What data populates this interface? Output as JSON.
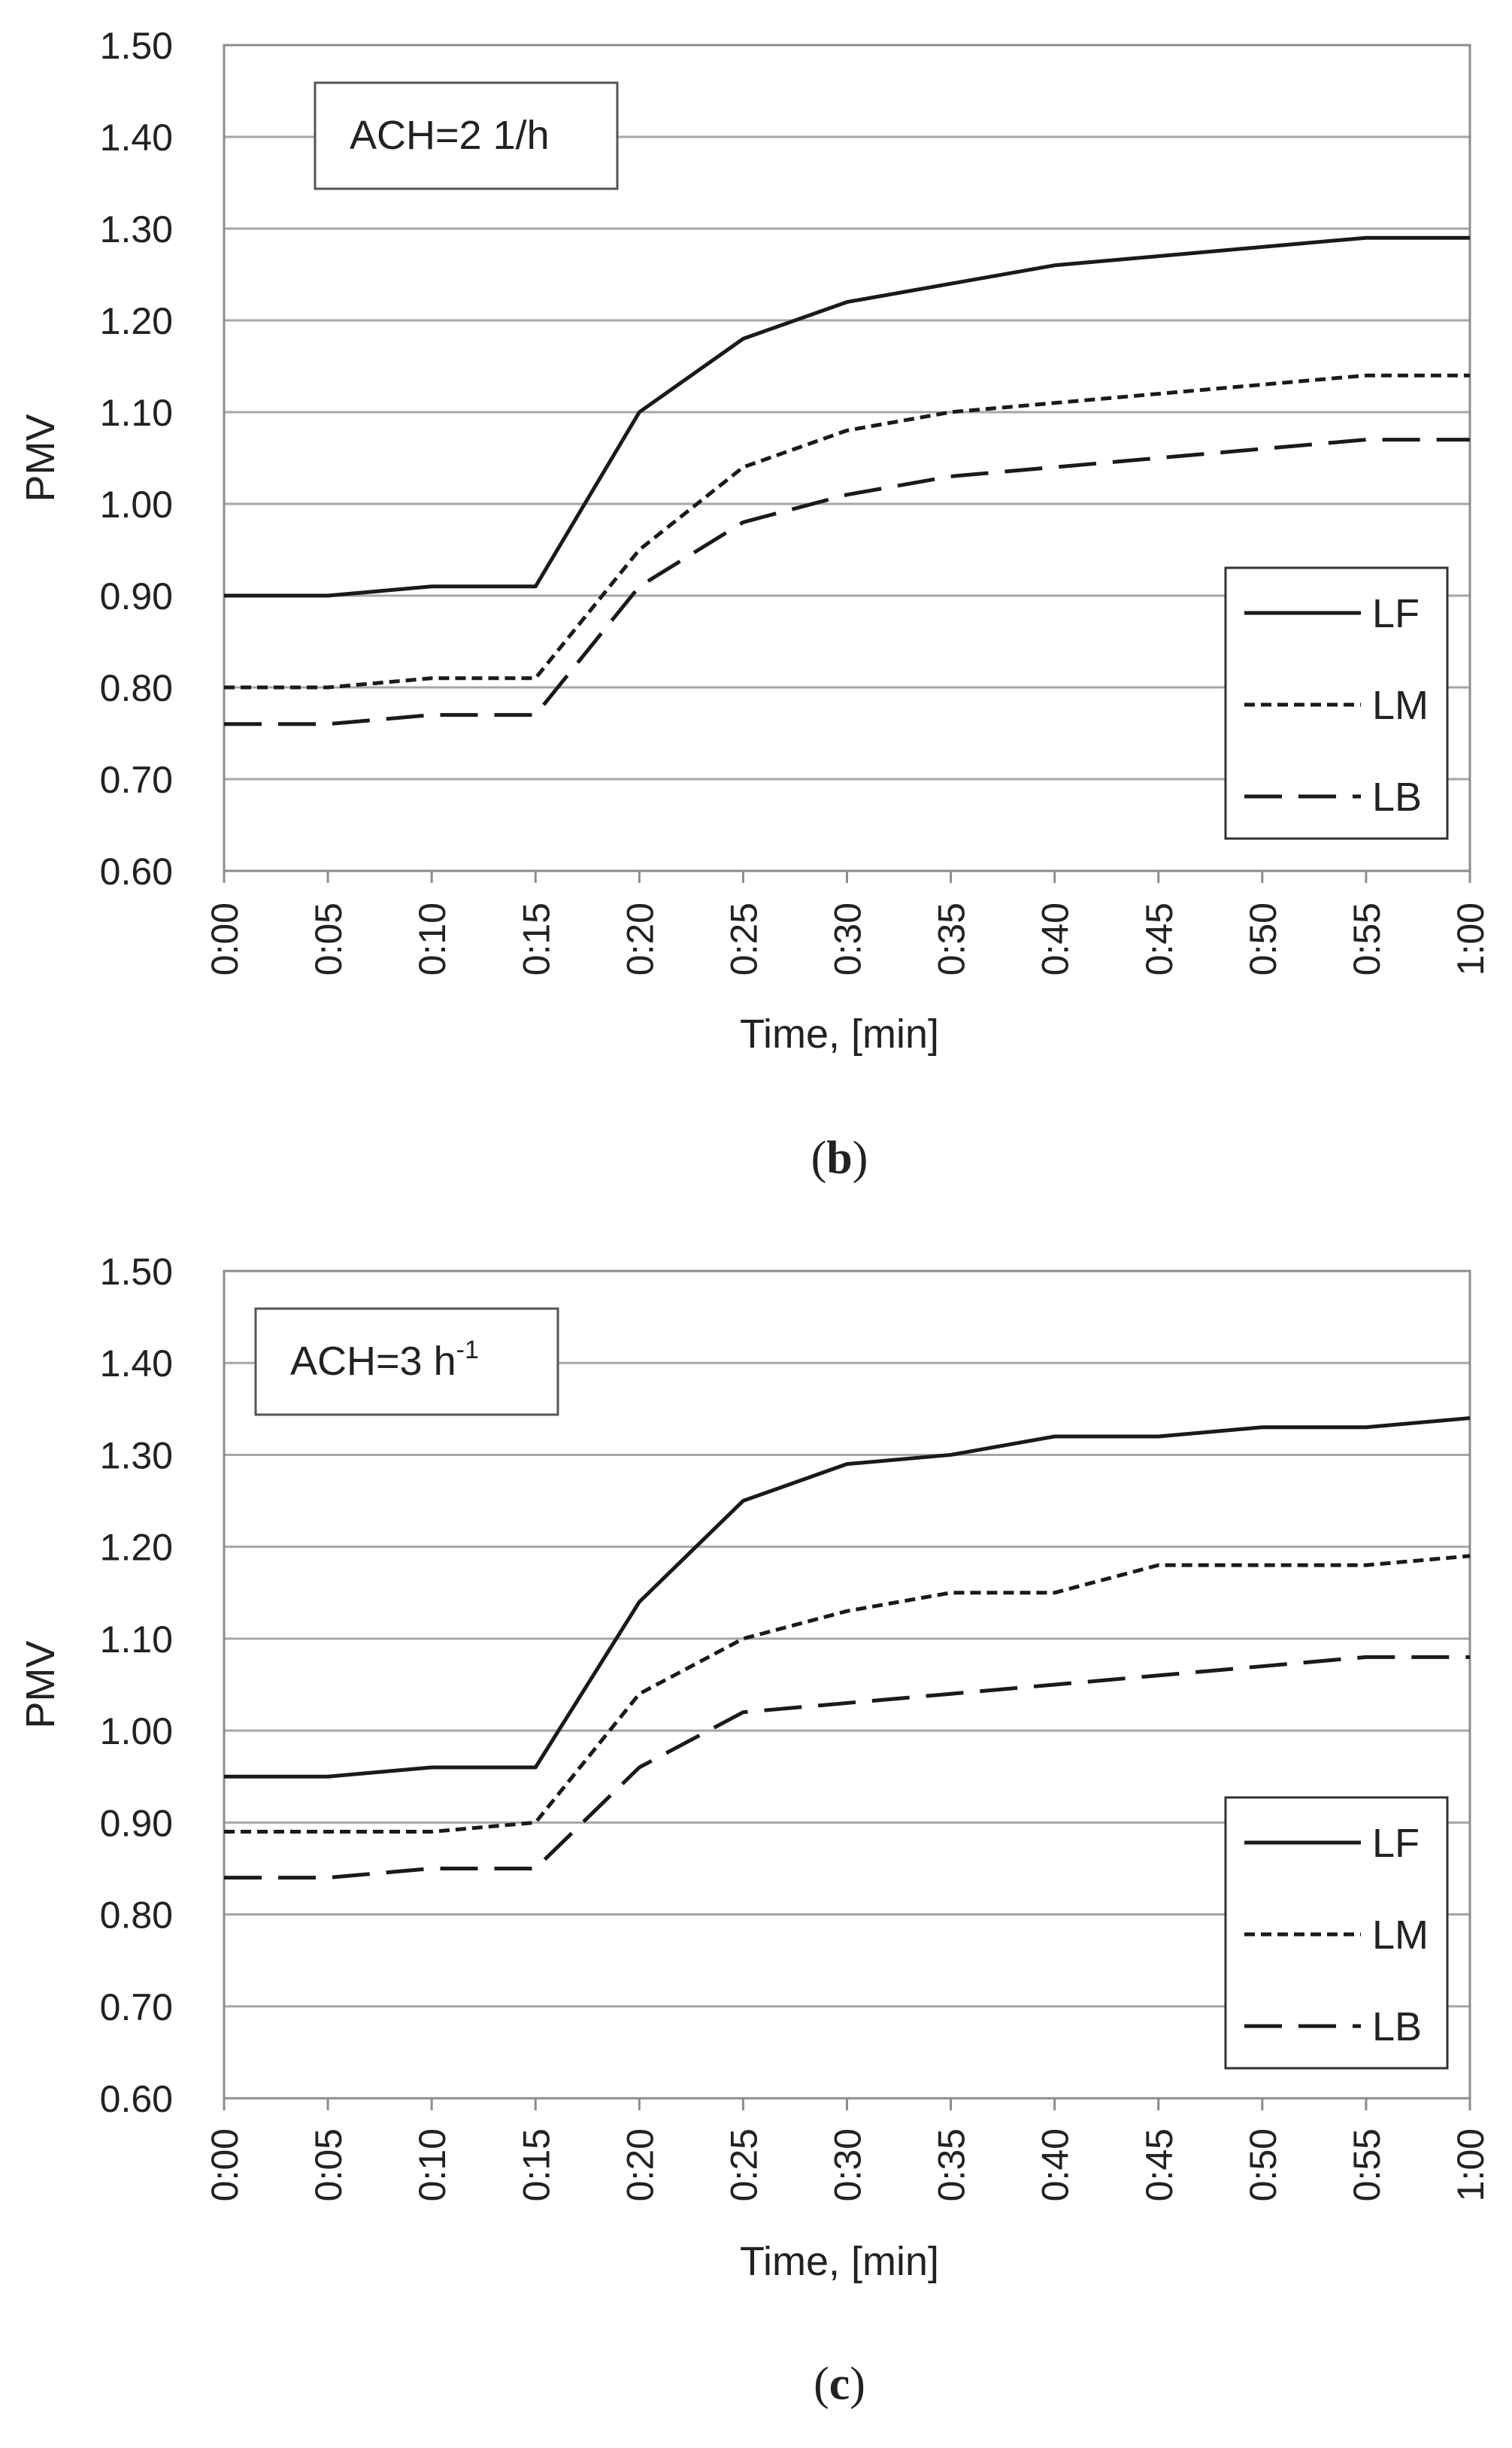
{
  "chart_data": [
    {
      "type": "line",
      "panel_label": "b",
      "annotation": "ACH=2 1/h",
      "xlabel": "Time, [min]",
      "ylabel": "PMV",
      "ylim": [
        0.6,
        1.5
      ],
      "y_ticks": [
        "0.60",
        "0.70",
        "0.80",
        "0.90",
        "1.00",
        "1.10",
        "1.20",
        "1.30",
        "1.40",
        "1.50"
      ],
      "x": [
        "0:00",
        "0:05",
        "0:10",
        "0:15",
        "0:20",
        "0:25",
        "0:30",
        "0:35",
        "0:40",
        "0:45",
        "0:50",
        "0:55",
        "1:00"
      ],
      "grid": "horizontal",
      "legend_position": "bottom-right",
      "series": [
        {
          "name": "LF",
          "style": "solid",
          "values": [
            0.9,
            0.9,
            0.91,
            0.91,
            1.1,
            1.18,
            1.22,
            1.24,
            1.26,
            1.27,
            1.28,
            1.29,
            1.29
          ]
        },
        {
          "name": "LM",
          "style": "dotted",
          "values": [
            0.8,
            0.8,
            0.81,
            0.81,
            0.95,
            1.04,
            1.08,
            1.1,
            1.11,
            1.12,
            1.13,
            1.14,
            1.14
          ]
        },
        {
          "name": "LB",
          "style": "dashed",
          "values": [
            0.76,
            0.76,
            0.77,
            0.77,
            0.91,
            0.98,
            1.01,
            1.03,
            1.04,
            1.05,
            1.06,
            1.07,
            1.07
          ]
        }
      ]
    },
    {
      "type": "line",
      "panel_label": "c",
      "annotation": "ACH=3 h",
      "annotation_sup": "-1",
      "xlabel": "Time, [min]",
      "ylabel": "PMV",
      "ylim": [
        0.6,
        1.5
      ],
      "y_ticks": [
        "0.60",
        "0.70",
        "0.80",
        "0.90",
        "1.00",
        "1.10",
        "1.20",
        "1.30",
        "1.40",
        "1.50"
      ],
      "x": [
        "0:00",
        "0:05",
        "0:10",
        "0:15",
        "0:20",
        "0:25",
        "0:30",
        "0:35",
        "0:40",
        "0:45",
        "0:50",
        "0:55",
        "1:00"
      ],
      "grid": "horizontal",
      "legend_position": "bottom-right",
      "series": [
        {
          "name": "LF",
          "style": "solid",
          "values": [
            0.95,
            0.95,
            0.96,
            0.96,
            1.14,
            1.25,
            1.29,
            1.3,
            1.32,
            1.32,
            1.33,
            1.33,
            1.34
          ]
        },
        {
          "name": "LM",
          "style": "dotted",
          "values": [
            0.89,
            0.89,
            0.89,
            0.9,
            1.04,
            1.1,
            1.13,
            1.15,
            1.15,
            1.18,
            1.18,
            1.18,
            1.19
          ]
        },
        {
          "name": "LB",
          "style": "dashed",
          "values": [
            0.84,
            0.84,
            0.85,
            0.85,
            0.96,
            1.02,
            1.03,
            1.04,
            1.05,
            1.06,
            1.07,
            1.08,
            1.08
          ]
        }
      ]
    }
  ],
  "colors": {
    "line": "#1a1a1a",
    "grid": "#a6a6a6",
    "axis": "#8c8c8c",
    "text": "#222222"
  }
}
